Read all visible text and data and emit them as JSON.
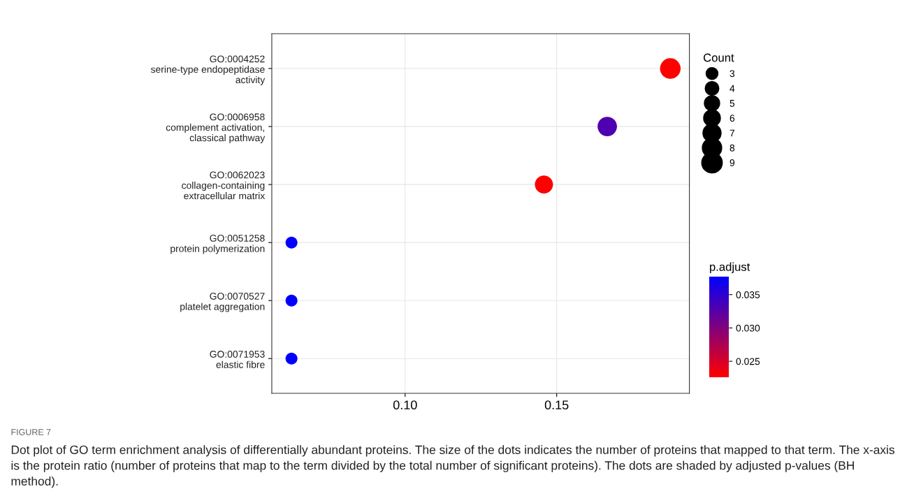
{
  "chart_data": {
    "type": "bubble",
    "categories": [
      "GO:0004252\nserine-type endopeptidase\nactivity",
      "GO:0006958\ncomplement activation,\nclassical pathway",
      "GO:0062023\ncollagen-containing\nextracellular matrix",
      "GO:0051258\nprotein polymerization",
      "GO:0070527\nplatelet aggregation",
      "GO:0071953\nelastic fibre"
    ],
    "values": [
      0.1875,
      0.1667,
      0.1458,
      0.0625,
      0.0625,
      0.0625
    ],
    "sizes": [
      9,
      8,
      7,
      3,
      3,
      3
    ],
    "size_legend": [
      3,
      4,
      5,
      6,
      7,
      8,
      9
    ],
    "legend_title": "Count",
    "cvalues": [
      0.0226,
      0.033,
      0.0226,
      0.0376,
      0.0376,
      0.0376
    ],
    "clabel": "p.adjust",
    "clim": [
      0.0226,
      0.0377
    ],
    "cticks": [
      {
        "value": 0.025,
        "label": "0.025"
      },
      {
        "value": 0.03,
        "label": "0.030"
      },
      {
        "value": 0.035,
        "label": "0.035"
      }
    ],
    "orientation": "horizontal",
    "xlim": [
      0.056,
      0.1938
    ],
    "xticks": [
      {
        "value": 0.1,
        "label": "0.10"
      },
      {
        "value": 0.15,
        "label": "0.15"
      }
    ],
    "grid": true,
    "annotations": [
      "FIGURE 7",
      "Dot plot of GO term enrichment analysis of differentially abundant proteins. The size of the dots indicates the number of proteins that mapped to that term. The x-axis is the protein ratio (number of proteins that map to the term divided by the total number of significant proteins). The dots are shaded by adjusted p-values (BH method)."
    ]
  }
}
